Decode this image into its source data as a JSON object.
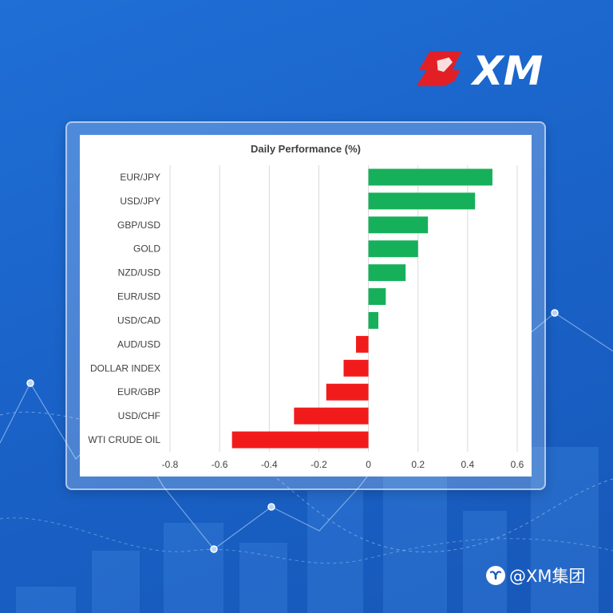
{
  "brand": {
    "logo_text": "XM",
    "watermark": "@XM集团"
  },
  "colors": {
    "positive": "#16b05a",
    "negative": "#f21b1b",
    "grid": "#d9d9d9",
    "text": "#404040"
  },
  "icons": {
    "watermark_icon": "wechat-channel-icon"
  },
  "chart_data": {
    "type": "bar",
    "orientation": "horizontal",
    "title": "Daily Performance (%)",
    "xlabel": "",
    "ylabel": "",
    "xlim": [
      -0.8,
      0.6
    ],
    "xticks": [
      "-0.8",
      "-0.6",
      "-0.4",
      "-0.2",
      "0",
      "0.2",
      "0.4",
      "0.6"
    ],
    "grid": "vertical",
    "legend": "none",
    "categories": [
      "EUR/JPY",
      "USD/JPY",
      "GBP/USD",
      "GOLD",
      "NZD/USD",
      "EUR/USD",
      "USD/CAD",
      "AUD/USD",
      "DOLLAR INDEX",
      "EUR/GBP",
      "USD/CHF",
      "WTI CRUDE OIL"
    ],
    "values": [
      0.5,
      0.43,
      0.24,
      0.2,
      0.15,
      0.07,
      0.04,
      -0.05,
      -0.1,
      -0.17,
      -0.3,
      -0.55
    ]
  }
}
